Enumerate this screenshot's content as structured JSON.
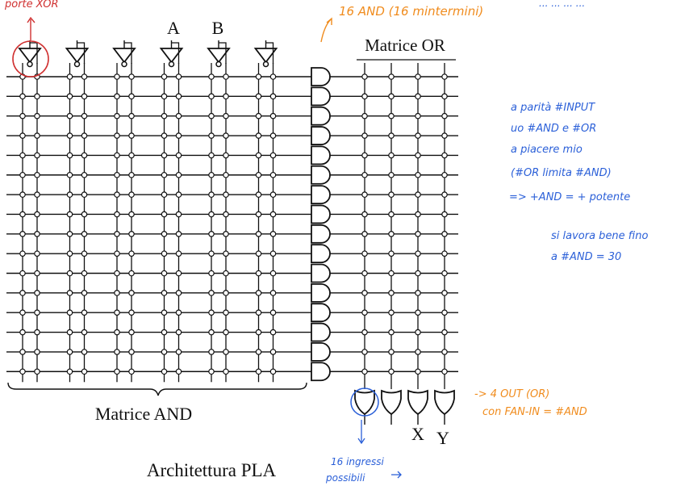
{
  "diagram": {
    "title": "Architettura PLA",
    "and_matrix_label": "Matrice AND",
    "or_matrix_label": "Matrice OR",
    "input_labels": [
      "A",
      "B"
    ],
    "output_labels": [
      "X",
      "Y"
    ],
    "input_count": 6,
    "and_gate_count": 16,
    "or_gate_count": 4
  },
  "annotations": {
    "top_left_red": "porte XOR",
    "top_center_orange": "16 AND (16 mintermini)",
    "top_right_blue": "... ... ... ...",
    "note_blue_1": [
      "a parità #INPUT",
      "uo #AND e #OR",
      "a piacere mio",
      "(#OR limita #AND)",
      "=> +AND = + potente"
    ],
    "note_blue_2": [
      "si lavora bene fino",
      "a #AND = 30"
    ],
    "note_orange_bottom": [
      "-> 4 OUT (OR)",
      "con FAN-IN = #AND"
    ],
    "note_blue_bottom": [
      "16 ingressi",
      "possibili"
    ]
  },
  "colors": {
    "ink": "#111111",
    "red": "#d03030",
    "orange": "#f08c1e",
    "blue": "#2a5fd8"
  }
}
